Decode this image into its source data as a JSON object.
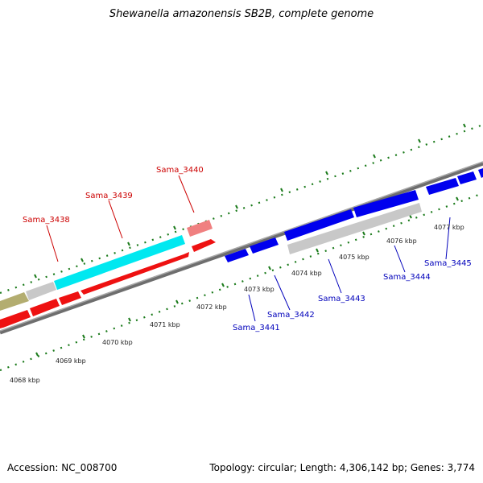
{
  "title": "Shewanella amazonensis SB2B, complete genome",
  "footer": {
    "accession": "Accession: NC_008700",
    "summary": "Topology: circular; Length: 4,306,142 bp; Genes: 3,774"
  },
  "colors": {
    "forward_gene": "#ff0000",
    "forward_label": "#cc0000",
    "reverse_gene": "#0000ee",
    "reverse_label": "#0000bb",
    "backbone": "#808080",
    "tick": "#1a7a1a",
    "rna": "#00ffff",
    "pseudo": "#c8c8c8",
    "olive": "#b3ad70",
    "pink": "#f08080"
  },
  "kbp_labels": [
    "4068 kbp",
    "4069 kbp",
    "4070 kbp",
    "4071 kbp",
    "4072 kbp",
    "4073 kbp",
    "4074 kbp",
    "4075 kbp",
    "4076 kbp",
    "4077 kbp"
  ],
  "forward_gene_labels": [
    "Sama_3438",
    "Sama_3439",
    "Sama_3440"
  ],
  "reverse_gene_labels": [
    "Sama_3441",
    "Sama_3442",
    "Sama_3443",
    "Sama_3444",
    "Sama_3445"
  ]
}
